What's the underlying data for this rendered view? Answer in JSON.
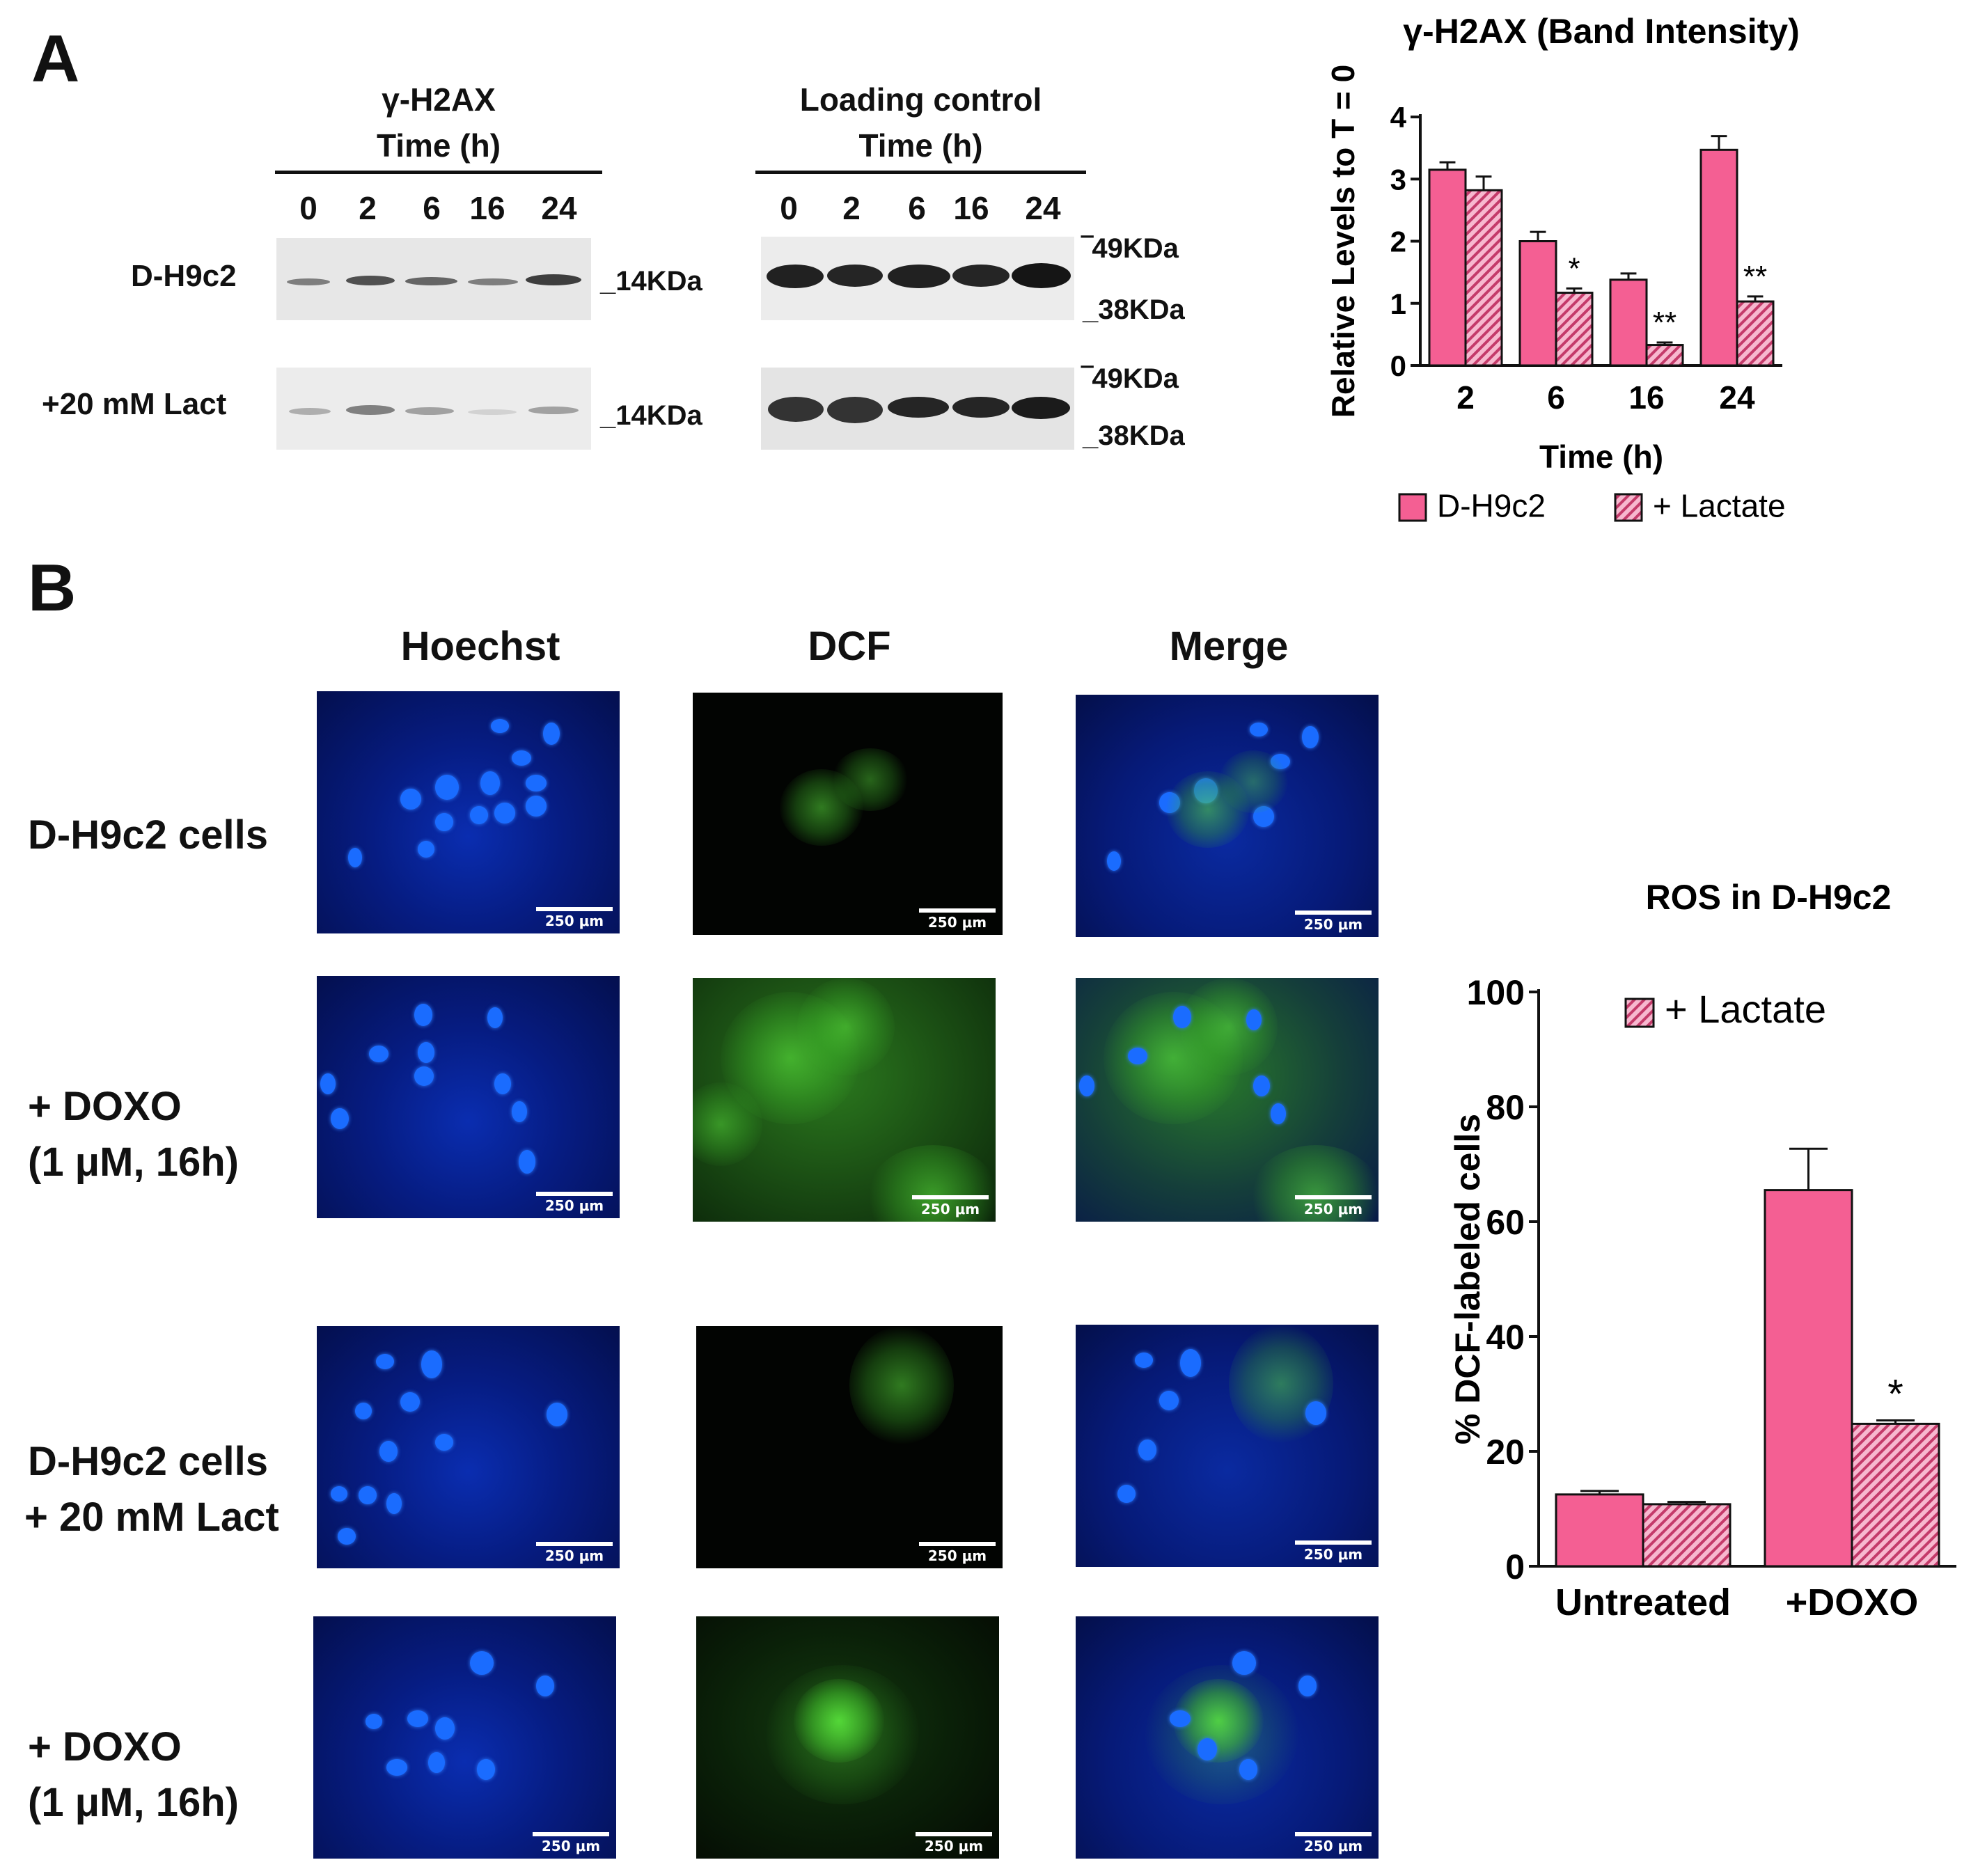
{
  "panel_a": {
    "letter": "A",
    "blot_left": {
      "title_1": "γ-H2AX",
      "title_2": "Time (h)"
    },
    "blot_right": {
      "title_1": "Loading control",
      "title_2": "Time (h)"
    },
    "lanes": [
      "0",
      "2",
      "6",
      "16",
      "24"
    ],
    "rows": [
      "D-H9c2",
      "+20 mM Lact"
    ],
    "kda_left": "_14KDa",
    "kda_right_top": "49KDa",
    "kda_right_bottom": "38KDa",
    "chart_title": "γ-H2AX (Band Intensity)"
  },
  "panel_b": {
    "letter": "B",
    "columns": [
      "Hoechst",
      "DCF",
      "Merge"
    ],
    "conditions": [
      {
        "line1": "D-H9c2 cells",
        "line2": ""
      },
      {
        "line1": "+ DOXO",
        "line2": "(1 μM, 16h)"
      },
      {
        "line1": "D-H9c2 cells",
        "line2": "+ 20 mM Lact"
      },
      {
        "line1": "+ DOXO",
        "line2": "(1 μM, 16h)"
      }
    ],
    "scale_bar": "250 μm",
    "chart_title": "ROS in D-H9c2"
  },
  "colors": {
    "bar_pink": "#f45f93",
    "hatch": "#c43a6a",
    "axis": "#111111"
  },
  "chart_data": [
    {
      "type": "bar",
      "title": "γ-H2AX (Band Intensity)",
      "xlabel": "Time (h)",
      "ylabel": "Relative Levels to T = 0",
      "categories": [
        "2",
        "6",
        "16",
        "24"
      ],
      "ylim": [
        0,
        4
      ],
      "yticks": [
        "0",
        "1",
        "2",
        "3",
        "4"
      ],
      "series": [
        {
          "name": "D-H9c2",
          "values": [
            3.15,
            2.0,
            1.38,
            3.47
          ],
          "errors": [
            0.12,
            0.15,
            0.1,
            0.22
          ]
        },
        {
          "name": "+ Lactate",
          "values": [
            2.82,
            1.17,
            0.33,
            1.03
          ],
          "errors": [
            0.22,
            0.07,
            0.04,
            0.08
          ]
        }
      ],
      "annotations": [
        {
          "category": "6",
          "series": "+ Lactate",
          "text": "*"
        },
        {
          "category": "16",
          "series": "+ Lactate",
          "text": "**"
        },
        {
          "category": "24",
          "series": "+ Lactate",
          "text": "**"
        }
      ],
      "legend": "bottom"
    },
    {
      "type": "bar",
      "title": "ROS in D-H9c2",
      "xlabel": "",
      "ylabel": "% DCF-labeled cells",
      "categories": [
        "Untreated",
        "+DOXO"
      ],
      "ylim": [
        0,
        100
      ],
      "yticks": [
        "0",
        "20",
        "40",
        "60",
        "80",
        "100"
      ],
      "series": [
        {
          "name": "",
          "values": [
            12.5,
            65.5
          ],
          "errors": [
            0.6,
            7.2
          ]
        },
        {
          "name": "+ Lactate",
          "values": [
            10.8,
            24.8
          ],
          "errors": [
            0.4,
            0.6
          ]
        }
      ],
      "annotations": [
        {
          "category": "+DOXO",
          "series": "+ Lactate",
          "text": "*"
        }
      ],
      "legend": "top-left"
    }
  ]
}
